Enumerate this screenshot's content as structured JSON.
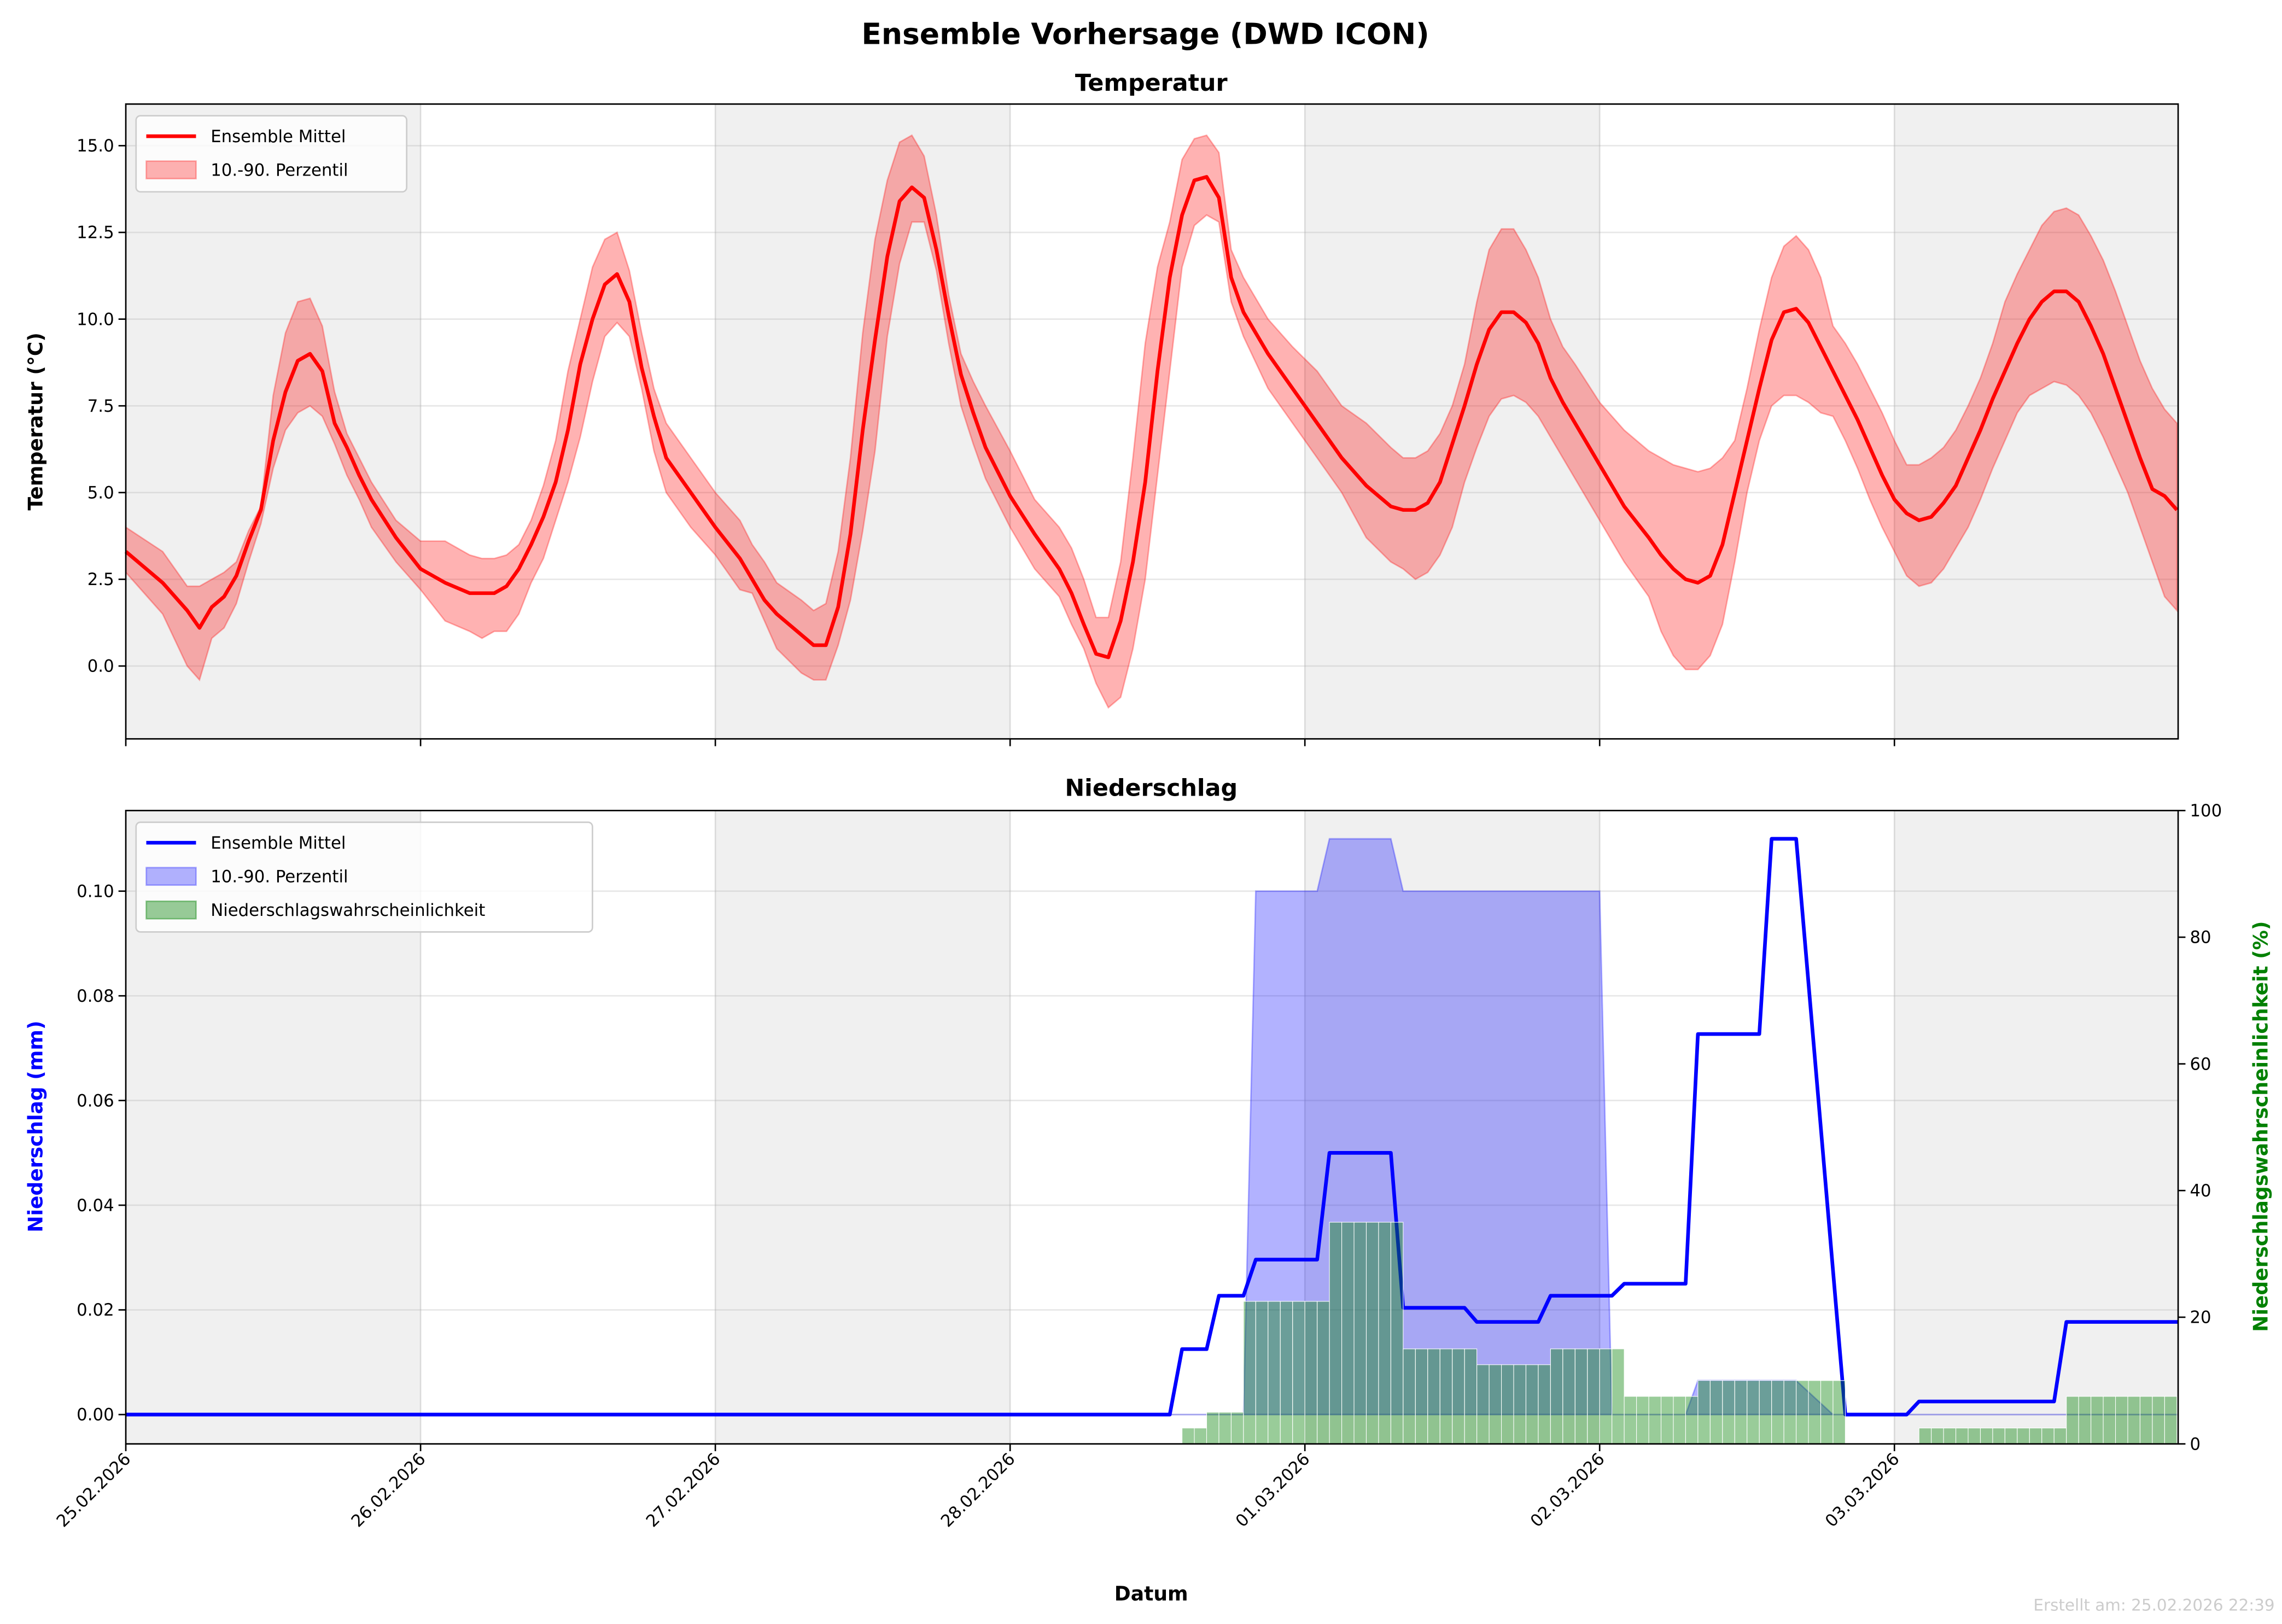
{
  "figure": {
    "title": "Ensemble Vorhersage (DWD ICON)",
    "footer": "Erstellt am: 25.02.2026 22:39",
    "xlabel": "Datum",
    "x_tick_labels": [
      "25.02.2026",
      "26.02.2026",
      "27.02.2026",
      "28.02.2026",
      "01.03.2026",
      "02.03.2026",
      "03.03.2026"
    ],
    "colors": {
      "temp": "#ff0000",
      "precip": "#0000ff",
      "prob": "#008000",
      "shade": "#f0f0f0"
    }
  },
  "chart_data": [
    {
      "type": "line",
      "title": "Temperatur",
      "ylabel": "Temperatur (°C)",
      "ylim": [
        -2.1,
        16.2
      ],
      "xlim_hours": [
        0,
        167.1
      ],
      "x_unit": "hours since 25.02.2026 00:00",
      "y_ticks": [
        "0.0",
        "2.5",
        "5.0",
        "7.5",
        "10.0",
        "12.5",
        "15.0"
      ],
      "y_tick_values": [
        0,
        2.5,
        5,
        7.5,
        10,
        12.5,
        15
      ],
      "legend": {
        "placement": "upper-left",
        "mean_label": "Ensemble Mittel",
        "band_label": "10.-90. Perzentil"
      },
      "hours": [
        0,
        3,
        5,
        6,
        7,
        8,
        9,
        10,
        11,
        12,
        13,
        14,
        15,
        16,
        17,
        18,
        19,
        20,
        22,
        24,
        26,
        28,
        29,
        30,
        31,
        32,
        33,
        34,
        35,
        36,
        37,
        38,
        39,
        40,
        41,
        42,
        43,
        44,
        46,
        48,
        50,
        51,
        52,
        53,
        55,
        56,
        57,
        58,
        59,
        60,
        61,
        62,
        63,
        64,
        65,
        66,
        67,
        68,
        69,
        70,
        72,
        74,
        76,
        77,
        78,
        79,
        80,
        81,
        82,
        83,
        84,
        85,
        86,
        87,
        88,
        89,
        90,
        91,
        93,
        95,
        97,
        99,
        101,
        103,
        104,
        105,
        106,
        107,
        108,
        109,
        110,
        111,
        112,
        113,
        114,
        115,
        116,
        117,
        118,
        120,
        122,
        124,
        125,
        126,
        127,
        128,
        129,
        130,
        131,
        132,
        133,
        134,
        135,
        136,
        137,
        138,
        139,
        140,
        141,
        142,
        143,
        144,
        145,
        146,
        147,
        148,
        149,
        150,
        151,
        152,
        153,
        154,
        155,
        156,
        157,
        158,
        159,
        160,
        161,
        162,
        163,
        164,
        165,
        166,
        167
      ],
      "mean": [
        3.3,
        2.4,
        1.6,
        1.1,
        1.7,
        2.0,
        2.6,
        3.6,
        4.5,
        6.5,
        7.9,
        8.8,
        9.0,
        8.5,
        7.0,
        6.3,
        5.5,
        4.8,
        3.7,
        2.8,
        2.4,
        2.1,
        2.1,
        2.1,
        2.3,
        2.8,
        3.5,
        4.3,
        5.3,
        6.8,
        8.7,
        10.0,
        11.0,
        11.3,
        10.5,
        8.6,
        7.2,
        6.0,
        5.0,
        4.0,
        3.1,
        2.5,
        1.9,
        1.5,
        0.9,
        0.6,
        0.6,
        1.7,
        3.8,
        6.8,
        9.4,
        11.8,
        13.4,
        13.8,
        13.5,
        12.0,
        10.1,
        8.4,
        7.3,
        6.3,
        4.9,
        3.8,
        2.8,
        2.1,
        1.2,
        0.35,
        0.25,
        1.3,
        3.0,
        5.3,
        8.5,
        11.2,
        13.0,
        14.0,
        14.1,
        13.5,
        11.2,
        10.2,
        9.0,
        8.0,
        7.0,
        6.0,
        5.2,
        4.6,
        4.5,
        4.5,
        4.7,
        5.3,
        6.4,
        7.5,
        8.7,
        9.7,
        10.2,
        10.2,
        9.9,
        9.3,
        8.3,
        7.6,
        7.0,
        5.8,
        4.6,
        3.7,
        3.2,
        2.8,
        2.5,
        2.4,
        2.6,
        3.5,
        5.0,
        6.5,
        8.0,
        9.4,
        10.2,
        10.3,
        9.9,
        9.2,
        8.5,
        7.8,
        7.1,
        6.3,
        5.5,
        4.8,
        4.4,
        4.2,
        4.3,
        4.7,
        5.2,
        6.0,
        6.8,
        7.7,
        8.5,
        9.3,
        10.0,
        10.5,
        10.8,
        10.8,
        10.5,
        9.8,
        9.0,
        8.0,
        7.0,
        6.0,
        5.1,
        4.9,
        4.5
      ],
      "p10": [
        2.7,
        1.5,
        0.0,
        -0.4,
        0.8,
        1.1,
        1.8,
        3.0,
        4.1,
        5.7,
        6.8,
        7.3,
        7.5,
        7.2,
        6.4,
        5.5,
        4.8,
        4.0,
        3.0,
        2.2,
        1.3,
        1.0,
        0.8,
        1.0,
        1.0,
        1.5,
        2.4,
        3.1,
        4.2,
        5.3,
        6.6,
        8.2,
        9.5,
        9.9,
        9.5,
        8.0,
        6.2,
        5.0,
        4.0,
        3.2,
        2.2,
        2.1,
        1.3,
        0.5,
        -0.2,
        -0.4,
        -0.4,
        0.6,
        1.9,
        3.9,
        6.2,
        9.5,
        11.6,
        12.8,
        12.8,
        11.4,
        9.3,
        7.5,
        6.4,
        5.4,
        4.0,
        2.8,
        2.0,
        1.2,
        0.5,
        -0.5,
        -1.2,
        -0.9,
        0.5,
        2.5,
        5.5,
        8.5,
        11.5,
        12.7,
        13.0,
        12.8,
        10.5,
        9.5,
        8.0,
        7.0,
        6.0,
        5.0,
        3.7,
        3.0,
        2.8,
        2.5,
        2.7,
        3.2,
        4.0,
        5.3,
        6.3,
        7.2,
        7.7,
        7.8,
        7.6,
        7.2,
        6.6,
        6.0,
        5.4,
        4.2,
        3.0,
        2.0,
        1.0,
        0.3,
        -0.1,
        -0.1,
        0.3,
        1.2,
        3.0,
        5.0,
        6.5,
        7.5,
        7.8,
        7.8,
        7.6,
        7.3,
        7.2,
        6.5,
        5.7,
        4.8,
        4.0,
        3.3,
        2.6,
        2.3,
        2.4,
        2.8,
        3.4,
        4.0,
        4.8,
        5.7,
        6.5,
        7.3,
        7.8,
        8.0,
        8.2,
        8.1,
        7.8,
        7.3,
        6.6,
        5.8,
        5.0,
        4.0,
        3.0,
        2.0,
        1.6
      ],
      "p90": [
        4.0,
        3.3,
        2.3,
        2.3,
        2.5,
        2.7,
        3.0,
        3.9,
        4.6,
        7.8,
        9.6,
        10.5,
        10.6,
        9.8,
        7.9,
        6.7,
        6.0,
        5.3,
        4.2,
        3.6,
        3.6,
        3.2,
        3.1,
        3.1,
        3.2,
        3.5,
        4.2,
        5.2,
        6.5,
        8.5,
        10.0,
        11.5,
        12.3,
        12.5,
        11.4,
        9.6,
        8.0,
        7.0,
        6.0,
        5.0,
        4.2,
        3.5,
        3.0,
        2.4,
        1.9,
        1.6,
        1.8,
        3.3,
        6.0,
        9.6,
        12.3,
        14.0,
        15.1,
        15.3,
        14.7,
        13.0,
        10.7,
        9.0,
        8.2,
        7.5,
        6.2,
        4.8,
        4.0,
        3.4,
        2.5,
        1.4,
        1.4,
        3.0,
        6.0,
        9.3,
        11.5,
        12.8,
        14.6,
        15.2,
        15.3,
        14.8,
        12.0,
        11.2,
        10.0,
        9.2,
        8.5,
        7.5,
        7.0,
        6.3,
        6.0,
        6.0,
        6.2,
        6.7,
        7.5,
        8.7,
        10.5,
        12.0,
        12.6,
        12.6,
        12.0,
        11.2,
        10.0,
        9.2,
        8.7,
        7.6,
        6.8,
        6.2,
        6.0,
        5.8,
        5.7,
        5.6,
        5.7,
        6.0,
        6.5,
        8.0,
        9.7,
        11.2,
        12.1,
        12.4,
        12.0,
        11.2,
        9.8,
        9.3,
        8.7,
        8.0,
        7.3,
        6.5,
        5.8,
        5.8,
        6.0,
        6.3,
        6.8,
        7.5,
        8.3,
        9.3,
        10.5,
        11.3,
        12.0,
        12.7,
        13.1,
        13.2,
        13.0,
        12.4,
        11.7,
        10.8,
        9.8,
        8.8,
        8.0,
        7.4,
        7.0
      ]
    },
    {
      "type": "line",
      "title": "Niederschlag",
      "ylabel": "Niederschlag (mm)",
      "ylim": [
        -0.0056,
        0.1154
      ],
      "y_ticks": [
        "0.00",
        "0.02",
        "0.04",
        "0.06",
        "0.08",
        "0.10"
      ],
      "y_tick_values": [
        0,
        0.02,
        0.04,
        0.06,
        0.08,
        0.1
      ],
      "y2label": "Niederschlagswahrscheinlichkeit (%)",
      "y2lim": [
        0,
        100
      ],
      "y2_ticks": [
        "0",
        "20",
        "40",
        "60",
        "80",
        "100"
      ],
      "y2_tick_values": [
        0,
        20,
        40,
        60,
        80,
        100
      ],
      "legend": {
        "placement": "upper-left",
        "mean_label": "Ensemble Mittel",
        "band_label": "10.-90. Perzentil",
        "prob_label": "Niederschlagswahrscheinlichkeit"
      },
      "mean": {
        "hours": [
          0,
          85,
          86,
          88,
          89,
          91,
          92,
          97,
          98,
          103,
          104,
          109,
          110,
          115,
          116,
          121,
          122,
          127,
          128,
          133,
          134,
          136,
          140,
          145,
          146,
          157,
          158,
          167.1
        ],
        "values": [
          0,
          0,
          0.0125,
          0.0125,
          0.0227,
          0.0227,
          0.0296,
          0.0296,
          0.05,
          0.05,
          0.0204,
          0.0204,
          0.0177,
          0.0177,
          0.0227,
          0.0227,
          0.025,
          0.025,
          0.0727,
          0.0727,
          0.11,
          0.11,
          0,
          0,
          0.0025,
          0.0025,
          0.0177,
          0.0177
        ]
      },
      "p90": {
        "hours": [
          0,
          91,
          92,
          97,
          98,
          103,
          104,
          120,
          121,
          127,
          128,
          136,
          139,
          167.1
        ],
        "values": [
          0,
          0,
          0.1,
          0.1,
          0.11,
          0.11,
          0.1,
          0.1,
          0,
          0,
          0.0065,
          0.0065,
          0,
          0
        ]
      },
      "p10_value": 0,
      "probability_segments": [
        {
          "from_h": 86,
          "to_h": 88,
          "percent": 2.5
        },
        {
          "from_h": 88,
          "to_h": 91,
          "percent": 5
        },
        {
          "from_h": 91,
          "to_h": 98,
          "percent": 22.5
        },
        {
          "from_h": 98,
          "to_h": 104,
          "percent": 35
        },
        {
          "from_h": 104,
          "to_h": 110,
          "percent": 15
        },
        {
          "from_h": 110,
          "to_h": 116,
          "percent": 12.5
        },
        {
          "from_h": 116,
          "to_h": 122,
          "percent": 15
        },
        {
          "from_h": 122,
          "to_h": 128,
          "percent": 7.5
        },
        {
          "from_h": 128,
          "to_h": 140,
          "percent": 10
        },
        {
          "from_h": 146,
          "to_h": 158,
          "percent": 2.5
        },
        {
          "from_h": 158,
          "to_h": 167,
          "percent": 7.5
        }
      ]
    }
  ]
}
